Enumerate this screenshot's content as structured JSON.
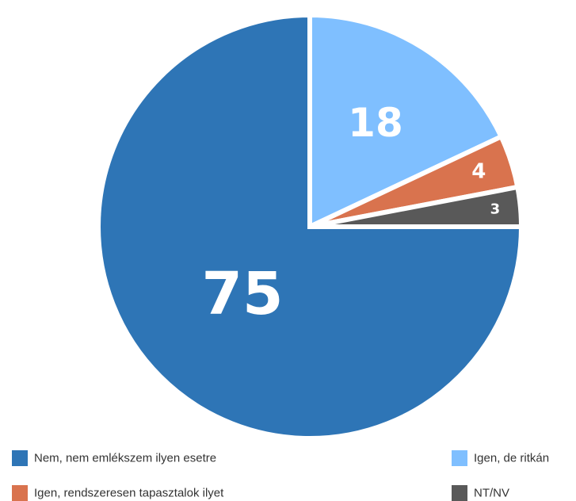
{
  "chart_data": {
    "type": "pie",
    "categories": [
      "Igen, de ritkán",
      "Igen, rendszeresen tapasztalok ilyet",
      "NT/NV",
      "Nem, nem emlékszem ilyen esetre"
    ],
    "values": [
      18,
      4,
      3,
      75
    ],
    "colors": [
      "#7fbfff",
      "#d9734e",
      "#595959",
      "#2e75b6"
    ]
  }
}
